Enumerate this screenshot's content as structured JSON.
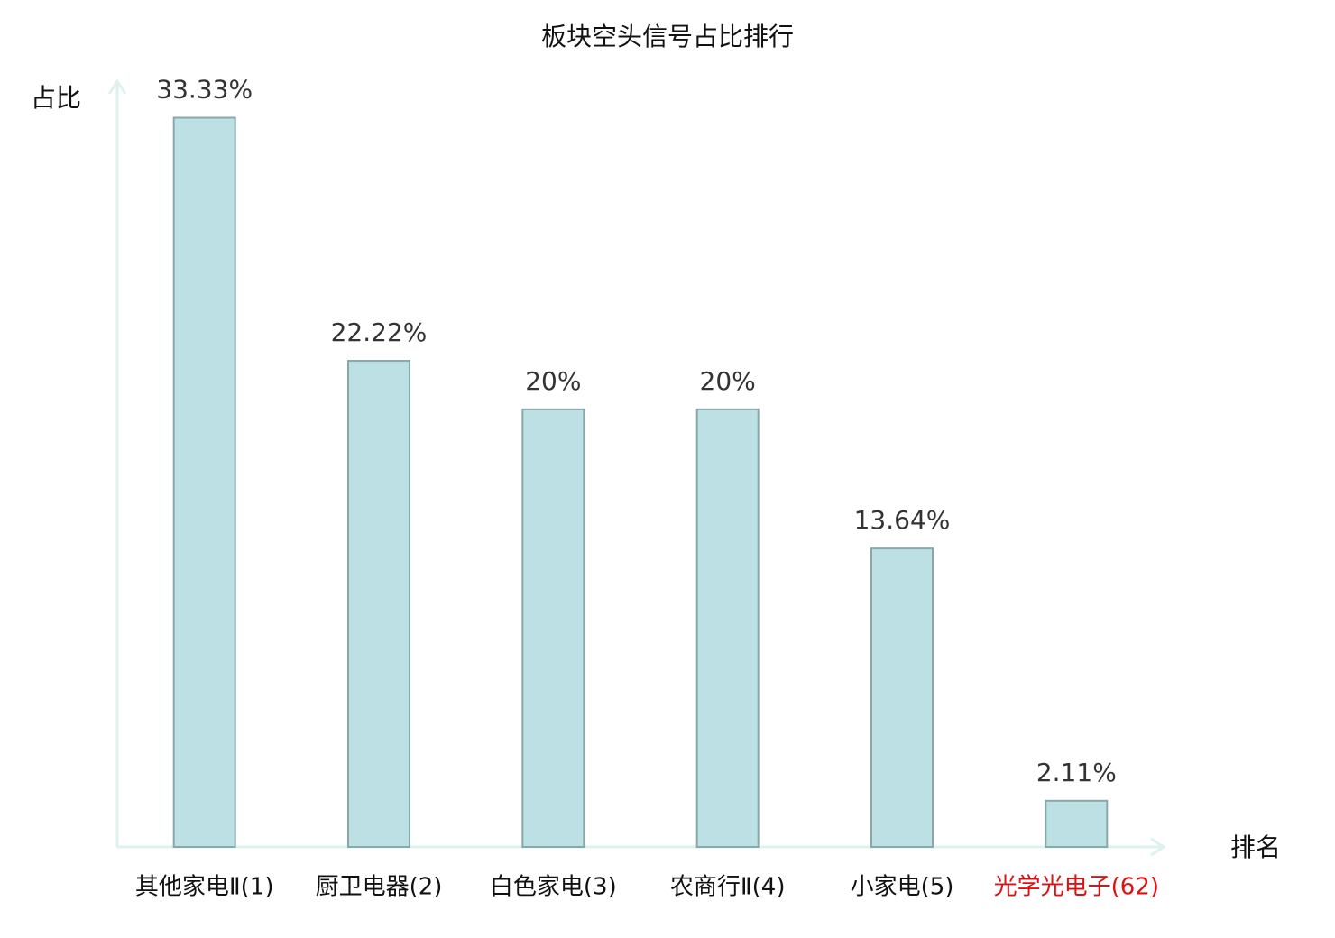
{
  "chart_data": {
    "type": "bar",
    "title": "板块空头信号占比排行",
    "y_label": "占比",
    "x_label": "排名",
    "categories": [
      "其他家电Ⅱ(1)",
      "厨卫电器(2)",
      "白色家电(3)",
      "农商行Ⅱ(4)",
      "小家电(5)",
      "光学光电子(62)"
    ],
    "category_colors": [
      "#111111",
      "#111111",
      "#111111",
      "#111111",
      "#111111",
      "#e01010"
    ],
    "values": [
      33.33,
      22.22,
      20,
      20,
      13.64,
      2.11
    ],
    "value_labels": [
      "33.33%",
      "22.22%",
      "20%",
      "20%",
      "13.64%",
      "2.11%"
    ],
    "color": "#bce0e3",
    "edge_color": "#88a8aa",
    "axis_color": "#dff1ef",
    "ylim": [
      0,
      35
    ]
  }
}
